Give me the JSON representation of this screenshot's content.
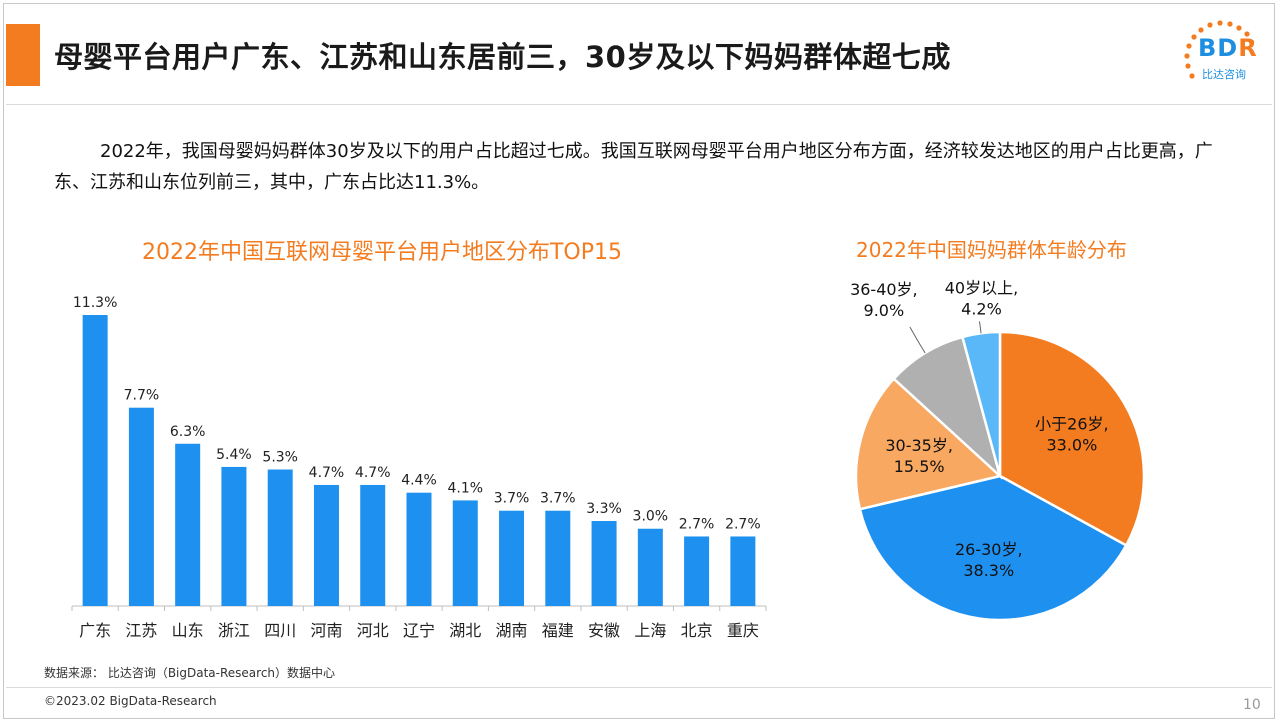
{
  "header": {
    "title": "母婴平台用户广东、江苏和山东居前三，30岁及以下妈妈群体超七成",
    "logo_text_b": "BD",
    "logo_text_r": "R",
    "logo_sub": "比达咨询"
  },
  "intro": {
    "paragraph": "2022年，我国母婴妈妈群体30岁及以下的用户占比超过七成。我国互联网母婴平台用户地区分布方面，经济较发达地区的用户占比更高，广东、江苏和山东位列前三，其中，广东占比达11.3%。"
  },
  "colors": {
    "accent": "#f47c20",
    "bar": "#1e90f0",
    "pie_orange": "#f47c20",
    "pie_blue": "#1e90f0",
    "pie_lightorange": "#f8a860",
    "pie_gray": "#b0b0b0",
    "pie_lightblue": "#5ab8f8"
  },
  "chart_data": [
    {
      "type": "bar",
      "title": "2022年中国互联网母婴平台用户地区分布TOP15",
      "categories": [
        "广东",
        "江苏",
        "山东",
        "浙江",
        "四川",
        "河南",
        "河北",
        "辽宁",
        "湖北",
        "湖南",
        "福建",
        "安徽",
        "上海",
        "北京",
        "重庆"
      ],
      "values": [
        11.3,
        7.7,
        6.3,
        5.4,
        5.3,
        4.7,
        4.7,
        4.4,
        4.1,
        3.7,
        3.7,
        3.3,
        3.0,
        2.7,
        2.7
      ],
      "value_labels": [
        "11.3%",
        "7.7%",
        "6.3%",
        "5.4%",
        "5.3%",
        "4.7%",
        "4.7%",
        "4.4%",
        "4.1%",
        "3.7%",
        "3.7%",
        "3.3%",
        "3.0%",
        "2.7%",
        "2.7%"
      ],
      "unit": "%",
      "ylim": [
        0,
        11.3
      ],
      "grid": false,
      "xlabel": "",
      "ylabel": ""
    },
    {
      "type": "pie",
      "title": "2022年中国妈妈群体年龄分布",
      "slices": [
        {
          "label": "小于26岁",
          "value": 33.0,
          "value_label": "33.0%",
          "color": "#f47c20"
        },
        {
          "label": "26-30岁",
          "value": 38.3,
          "value_label": "38.3%",
          "color": "#1e90f0"
        },
        {
          "label": "30-35岁",
          "value": 15.5,
          "value_label": "15.5%",
          "color": "#f8a860"
        },
        {
          "label": "36-40岁",
          "value": 9.0,
          "value_label": "9.0%",
          "color": "#b0b0b0"
        },
        {
          "label": "40岁以上",
          "value": 4.2,
          "value_label": "4.2%",
          "color": "#5ab8f8"
        }
      ]
    }
  ],
  "footer": {
    "source": "数据来源： 比达咨询（BigData-Research）数据中心",
    "copyright": "©2023.02 BigData-Research",
    "page_number": "10"
  }
}
